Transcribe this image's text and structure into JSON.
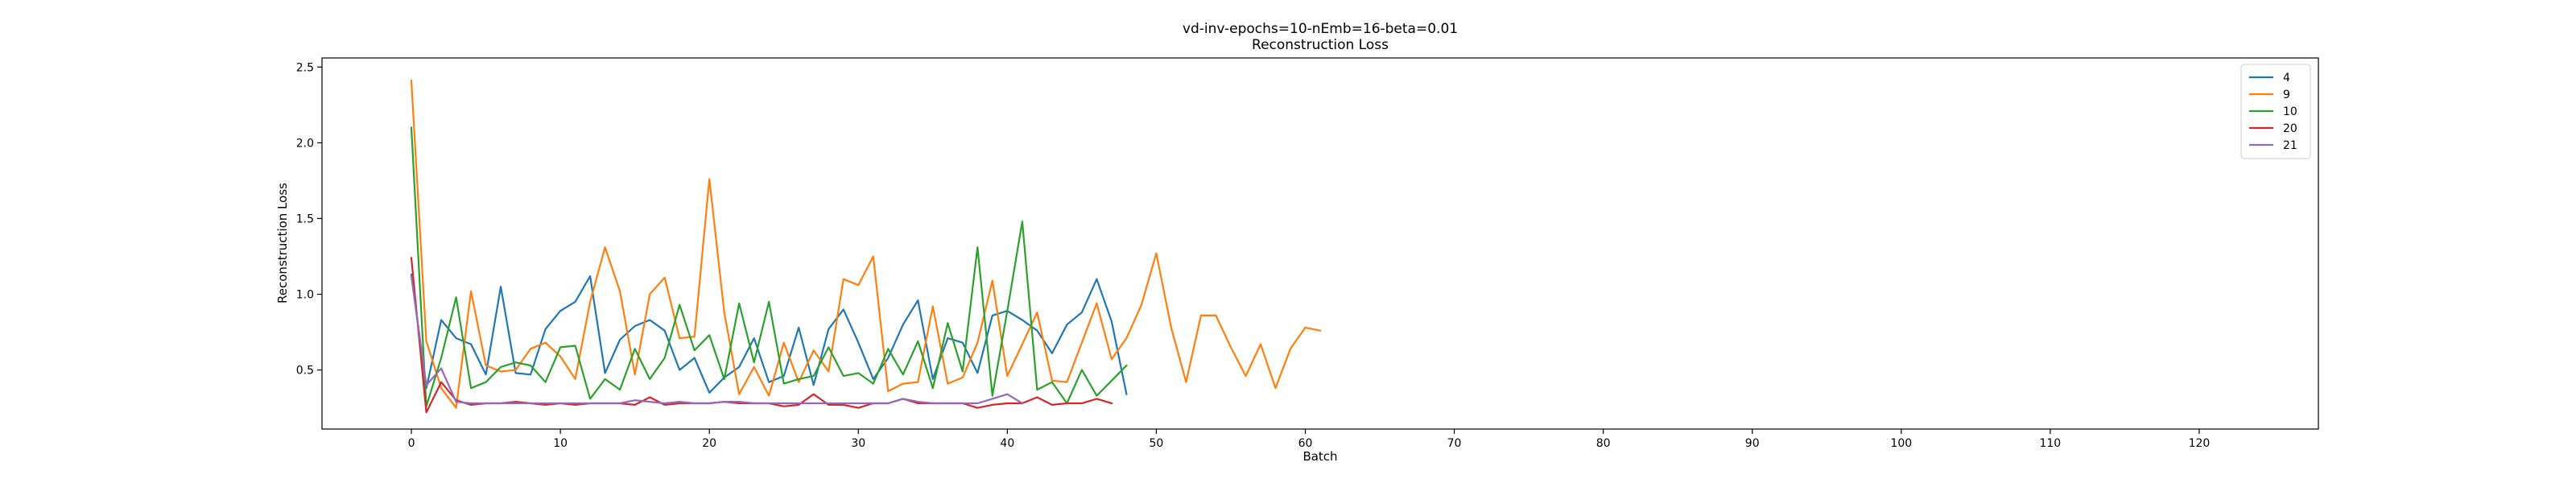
{
  "chart_data": {
    "type": "line",
    "title": "vd-inv-epochs=10-nEmb=16-beta=0.01",
    "subtitle": "Reconstruction Loss",
    "xlabel": "Batch",
    "ylabel": "Reconstruction Loss",
    "xlim": [
      -6,
      128
    ],
    "ylim": [
      0.11,
      2.56
    ],
    "xticks": [
      0,
      10,
      20,
      30,
      40,
      50,
      60,
      70,
      80,
      90,
      100,
      110,
      120
    ],
    "xtick_labels": [
      "0",
      "10",
      "20",
      "30",
      "40",
      "50",
      "60",
      "70",
      "80",
      "90",
      "100",
      "110",
      "120"
    ],
    "yticks": [
      0.5,
      1.0,
      1.5,
      2.0,
      2.5
    ],
    "ytick_labels": [
      "0.5",
      "1.0",
      "1.5",
      "2.0",
      "2.5"
    ],
    "grid": false,
    "legend_position": "top-right",
    "series": [
      {
        "name": "4",
        "color": "#1f77b4",
        "values": [
          1.13,
          0.38,
          0.83,
          0.71,
          0.67,
          0.47,
          1.05,
          0.48,
          0.47,
          0.77,
          0.89,
          0.95,
          1.12,
          0.48,
          0.7,
          0.79,
          0.83,
          0.76,
          0.5,
          0.58,
          0.35,
          0.45,
          0.52,
          0.71,
          0.42,
          0.46,
          0.78,
          0.4,
          0.77,
          0.9,
          0.68,
          0.44,
          0.58,
          0.8,
          0.96,
          0.44,
          0.71,
          0.68,
          0.48,
          0.86,
          0.89,
          0.83,
          0.76,
          0.61,
          0.8,
          0.88,
          1.1,
          0.82,
          0.34
        ]
      },
      {
        "name": "9",
        "color": "#ff7f0e",
        "values": [
          2.41,
          0.69,
          0.38,
          0.25,
          1.02,
          0.53,
          0.49,
          0.5,
          0.64,
          0.68,
          0.59,
          0.44,
          0.95,
          1.31,
          1.02,
          0.47,
          1.0,
          1.11,
          0.71,
          0.72,
          1.76,
          0.88,
          0.34,
          0.52,
          0.33,
          0.68,
          0.42,
          0.63,
          0.49,
          1.1,
          1.06,
          1.25,
          0.36,
          0.41,
          0.42,
          0.92,
          0.41,
          0.45,
          0.68,
          1.09,
          0.46,
          0.67,
          0.88,
          0.43,
          0.42,
          0.68,
          0.94,
          0.57,
          0.71,
          0.93,
          1.27,
          0.78,
          0.42,
          0.86,
          0.86,
          0.65,
          0.46,
          0.67,
          0.38,
          0.64,
          0.78,
          0.76
        ]
      },
      {
        "name": "10",
        "color": "#2ca02c",
        "values": [
          2.1,
          0.26,
          0.58,
          0.98,
          0.38,
          0.42,
          0.52,
          0.55,
          0.53,
          0.42,
          0.65,
          0.66,
          0.31,
          0.44,
          0.37,
          0.64,
          0.44,
          0.58,
          0.93,
          0.63,
          0.73,
          0.44,
          0.94,
          0.55,
          0.95,
          0.41,
          0.44,
          0.46,
          0.65,
          0.46,
          0.48,
          0.41,
          0.64,
          0.47,
          0.69,
          0.38,
          0.81,
          0.49,
          1.31,
          0.33,
          0.89,
          1.48,
          0.37,
          0.42,
          0.28,
          0.5,
          0.33,
          0.43,
          0.53
        ]
      },
      {
        "name": "20",
        "color": "#d62728",
        "values": [
          1.24,
          0.22,
          0.42,
          0.3,
          0.27,
          0.28,
          0.28,
          0.29,
          0.28,
          0.27,
          0.28,
          0.27,
          0.28,
          0.28,
          0.28,
          0.27,
          0.32,
          0.27,
          0.28,
          0.28,
          0.28,
          0.29,
          0.28,
          0.28,
          0.28,
          0.26,
          0.27,
          0.34,
          0.27,
          0.27,
          0.25,
          0.28,
          0.28,
          0.31,
          0.28,
          0.28,
          0.28,
          0.28,
          0.25,
          0.27,
          0.28,
          0.28,
          0.32,
          0.27,
          0.28,
          0.28,
          0.31,
          0.28
        ]
      },
      {
        "name": "21",
        "color": "#9467bd",
        "values": [
          1.12,
          0.4,
          0.51,
          0.29,
          0.28,
          0.28,
          0.28,
          0.28,
          0.28,
          0.28,
          0.28,
          0.28,
          0.28,
          0.28,
          0.28,
          0.3,
          0.29,
          0.28,
          0.29,
          0.28,
          0.28,
          0.29,
          0.29,
          0.28,
          0.28,
          0.28,
          0.28,
          0.28,
          0.28,
          0.28,
          0.28,
          0.28,
          0.28,
          0.31,
          0.29,
          0.28,
          0.28,
          0.28,
          0.28,
          0.31,
          0.34,
          0.28
        ]
      }
    ]
  }
}
